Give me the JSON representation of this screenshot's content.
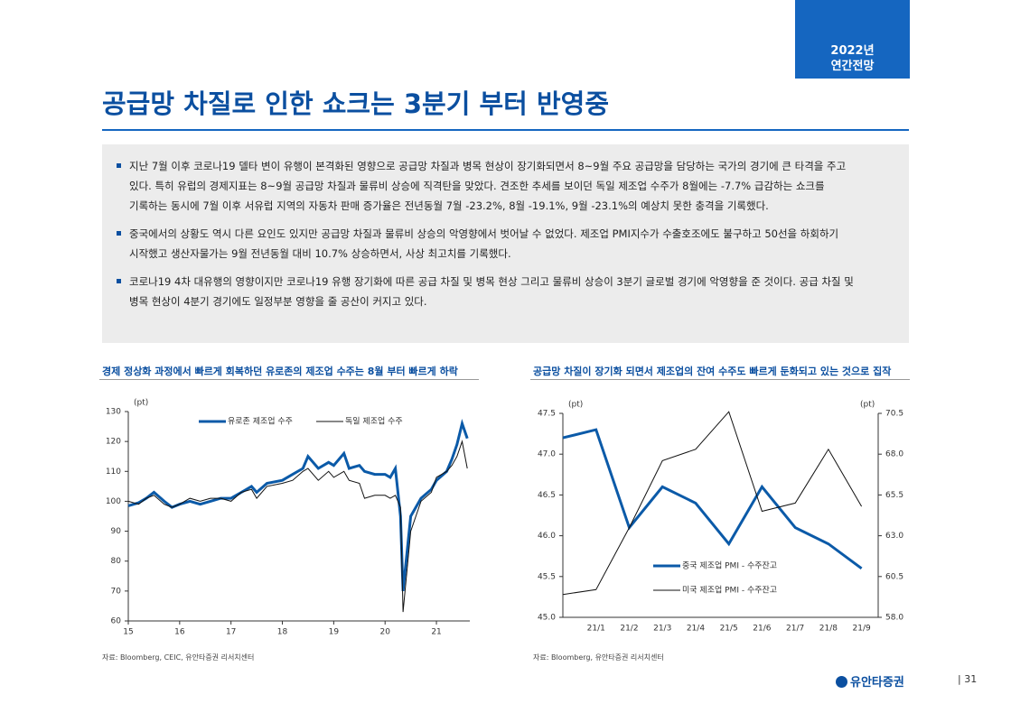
{
  "header": {
    "tag_line1": "2022년",
    "tag_line2": "연간전망",
    "title": "공급망 차질로 인한 쇼크는 3분기 부터 반영중"
  },
  "bullets": [
    [
      "지난 7월 이후 코로나19 델타 변이 유행이 본격화된 영향으로 공급망 차질과 병목 현상이 장기화되면서 8~9월 주요 공급망을 담당하는 국가의 경기에 큰 타격을 주고",
      "있다. 특히 유럽의 경제지표는 8~9월 공급망 차질과 물류비 상승에 직격탄을 맞았다. 견조한 추세를 보이던 독일 제조업 수주가 8월에는 -7.7% 급감하는 쇼크를",
      "기록하는 동시에 7월 이후 서유럽 지역의 자동차 판매 증가율은 전년동월 7월 -23.2%, 8월 -19.1%, 9월 -23.1%의 예상치 못한 충격을 기록했다."
    ],
    [
      "중국에서의 상황도 역시 다른 요인도 있지만 공급망 차질과 물류비 상승의 악영향에서 벗어날 수 없었다. 제조업 PMI지수가 수출호조에도 불구하고 50선을 하회하기",
      "시작했고 생산자물가는 9월 전년동월 대비 10.7% 상승하면서, 사상 최고치를 기록했다."
    ],
    [
      "코로나19 4차 대유행의 영향이지만 코로나19 유행 장기화에 따른 공급 차질 및 병목 현상 그리고 물류비 상승이 3분기 글로벌 경기에 악영향을 준 것이다. 공급 차질 및",
      "병목 현상이 4분기 경기에도 일정부분 영향을 줄 공산이 커지고 있다."
    ]
  ],
  "chart_data": [
    {
      "type": "line",
      "title": "경제 정상화 과정에서 빠르게 회복하던 유로존의 제조업 수주는 8월 부터 빠르게 하락",
      "unit": "(pt)",
      "source": "자료: Bloomberg, CEIC, 유안타증권 리서치센터",
      "x": [
        15.0,
        15.2,
        15.35,
        15.5,
        15.7,
        15.85,
        16.0,
        16.2,
        16.4,
        16.6,
        16.8,
        17.0,
        17.2,
        17.4,
        17.5,
        17.7,
        18.0,
        18.2,
        18.4,
        18.5,
        18.7,
        18.9,
        19.0,
        19.2,
        19.3,
        19.5,
        19.6,
        19.8,
        20.0,
        20.1,
        20.2,
        20.3,
        20.35,
        20.5,
        20.7,
        20.9,
        21.0,
        21.2,
        21.3,
        21.4,
        21.5,
        21.6
      ],
      "xlim": [
        15,
        21.65
      ],
      "xticks": [
        15,
        16,
        17,
        18,
        19,
        20,
        21
      ],
      "ylim": [
        60,
        130
      ],
      "yticks": [
        60,
        70,
        80,
        90,
        100,
        110,
        120,
        130
      ],
      "series": [
        {
          "name": "유로존 제조업 수주",
          "color": "#0b5aa8",
          "values": [
            98.5,
            99.5,
            101,
            103,
            100,
            98,
            99,
            100,
            99,
            100,
            101,
            101,
            103,
            105,
            103,
            106,
            107,
            109,
            111,
            115,
            111,
            113,
            112,
            116,
            111,
            112,
            110,
            109,
            109,
            108,
            111,
            95,
            70,
            95,
            101,
            104,
            107,
            110,
            114,
            119,
            126,
            121
          ]
        },
        {
          "name": "독일 제조업 수주",
          "color": "#111111",
          "values": [
            100,
            99,
            101,
            102,
            99,
            98,
            99,
            101,
            100,
            101,
            101,
            100,
            103,
            104,
            101,
            105,
            106,
            107,
            110,
            111,
            107,
            110,
            108,
            110,
            107,
            106,
            101,
            102,
            102,
            101,
            102,
            98,
            63,
            90,
            100,
            103,
            108,
            110,
            112,
            115,
            120,
            111
          ]
        }
      ]
    },
    {
      "type": "line",
      "title": "공급망 차질이 장기화 되면서 제조업의 잔여 수주도 빠르게 둔화되고 있는 것으로 집작",
      "unit": "(pt)",
      "y2_unit": "(pt)",
      "source": "자료: Bloomberg, 유안타증권 리서치센터",
      "categories": [
        null,
        "21/1",
        "21/2",
        "21/3",
        "21/4",
        "21/5",
        "21/6",
        "21/7",
        "21/8",
        "21/9"
      ],
      "ylim": [
        45,
        47.5
      ],
      "yticks": [
        {
          "value": 45,
          "label": "45.0"
        },
        45.5,
        {
          "value": 46,
          "label": "46.0"
        },
        46.5,
        {
          "value": 47,
          "label": "47.0"
        },
        47.5
      ],
      "y2lim": [
        58,
        70.5
      ],
      "y2ticks": [
        {
          "value": 58,
          "label": "58.0"
        },
        60.5,
        {
          "value": 63,
          "label": "63.0"
        },
        65.5,
        {
          "value": 68,
          "label": "68.0"
        },
        70.5
      ],
      "series": [
        {
          "name": "중국 제조업 PMI - 수주잔고",
          "color": "#0b5aa8",
          "values": [
            47.2,
            47.3,
            46.1,
            46.6,
            46.4,
            45.9,
            46.6,
            46.1,
            45.9,
            45.6
          ]
        },
        {
          "name": "미국 제조업 PMI - 수주잔고",
          "color": "#111111",
          "axis": "y2",
          "values": [
            59.4,
            59.7,
            63.5,
            67.6,
            68.3,
            70.6,
            64.5,
            65.0,
            68.3,
            64.8
          ]
        }
      ]
    }
  ],
  "footer": {
    "brand": "유안타증권",
    "page": "31"
  }
}
